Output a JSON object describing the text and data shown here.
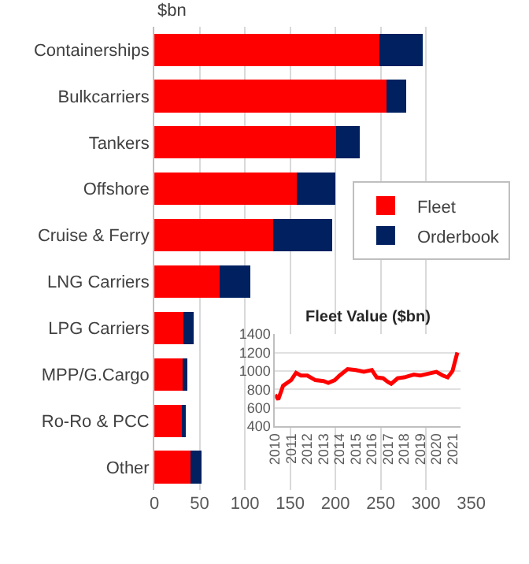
{
  "chart_data": [
    {
      "type": "bar",
      "orientation": "horizontal",
      "stacked": true,
      "xlabel": "$bn",
      "categories": [
        "Containerships",
        "Bulkcarriers",
        "Tankers",
        "Offshore",
        "Cruise & Ferry",
        "LNG Carriers",
        "LPG Carriers",
        "MPP/G.Cargo",
        "Ro-Ro & PCC",
        "Other"
      ],
      "series": [
        {
          "name": "Fleet",
          "color": "#ff0000",
          "values": [
            249,
            256,
            201,
            157,
            131,
            72,
            32,
            31,
            30,
            40
          ]
        },
        {
          "name": "Orderbook",
          "color": "#002060",
          "values": [
            47,
            22,
            26,
            43,
            65,
            34,
            11,
            5,
            5,
            12
          ]
        }
      ],
      "xlim": [
        0,
        350
      ],
      "xticks": [
        0,
        50,
        100,
        150,
        200,
        250,
        300,
        350
      ],
      "grid": "x",
      "legend": "right"
    },
    {
      "type": "line",
      "title": "Fleet Value ($bn)",
      "x": [
        2010,
        2010.2,
        2010.5,
        2011,
        2011.3,
        2011.6,
        2012,
        2012.5,
        2013,
        2013.3,
        2013.7,
        2014,
        2014.5,
        2015,
        2015.5,
        2016,
        2016.3,
        2016.7,
        2017,
        2017.2,
        2017.6,
        2018,
        2018.6,
        2019,
        2019.5,
        2020,
        2020.4,
        2020.7,
        2021,
        2021.3
      ],
      "series": [
        {
          "color": "#ff0000",
          "values": [
            740,
            690,
            840,
            900,
            980,
            950,
            950,
            900,
            890,
            870,
            900,
            950,
            1020,
            1010,
            990,
            1010,
            930,
            920,
            880,
            860,
            920,
            930,
            960,
            950,
            970,
            990,
            950,
            930,
            1000,
            1200
          ]
        }
      ],
      "xlim": [
        2010,
        2021.5
      ],
      "xticks": [
        2010,
        2011,
        2012,
        2013,
        2014,
        2015,
        2016,
        2017,
        2018,
        2019,
        2020,
        2021
      ],
      "ylim": [
        400,
        1400
      ],
      "yticks": [
        400,
        600,
        800,
        1000,
        1200,
        1400
      ],
      "grid": "y"
    }
  ]
}
